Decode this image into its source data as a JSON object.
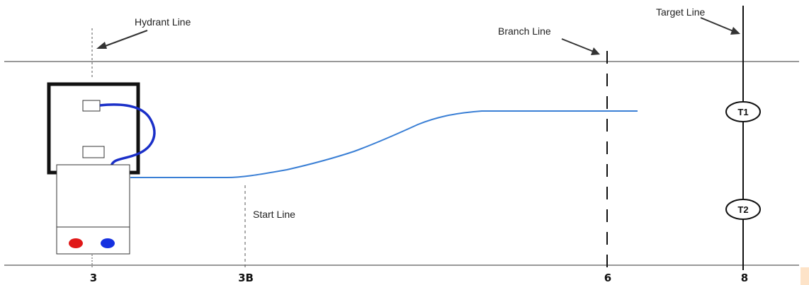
{
  "labels": {
    "hydrant_line": "Hydrant Line",
    "branch_line": "Branch Line",
    "target_line": "Target Line",
    "start_line": "Start Line"
  },
  "axis_marks": {
    "m3": "3",
    "m3b": "3B",
    "m6": "6",
    "m8": "8"
  },
  "targets": {
    "t1": "T1",
    "t2": "T2"
  },
  "colors": {
    "hose_line": "#3a7fd5",
    "connector_hose": "#1a2fc8",
    "indicator_red": "#e01818",
    "indicator_blue": "#1530e0",
    "structure": "#111111",
    "corner_accent": "#fde3c8"
  }
}
